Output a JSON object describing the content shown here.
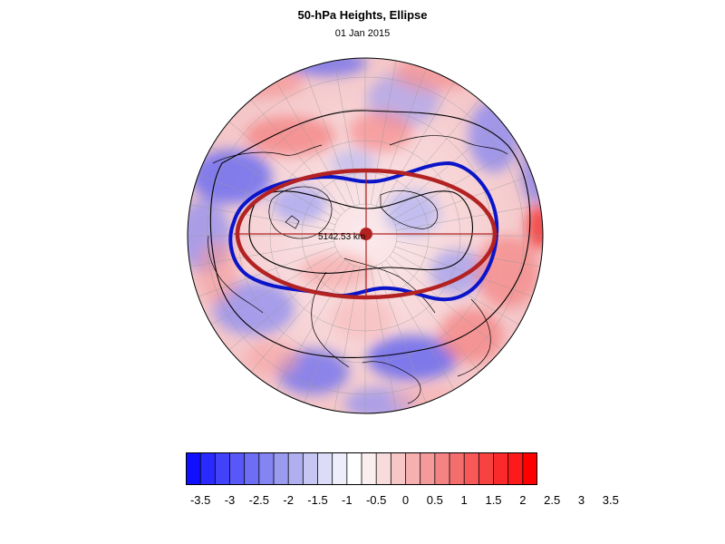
{
  "title": "50-hPa Heights, Ellipse",
  "date": "01 Jan 2015",
  "ellipse_annotation": "5142.53 km",
  "colors": {
    "ellipse": "#b22222",
    "observed_contour": "#0a14c8",
    "coastline": "#000000"
  },
  "colorbar": {
    "palette": [
      "#1010ff",
      "#2a2aff",
      "#4242fb",
      "#5858f8",
      "#6e6ef4",
      "#8484f2",
      "#9a9aef",
      "#b0b0f0",
      "#c6c6f2",
      "#dcdcf6",
      "#eeeefa",
      "#ffffff",
      "#faeeee",
      "#f8dcdc",
      "#f7c6c6",
      "#f6b0b0",
      "#f59a9a",
      "#f48484",
      "#f56e6e",
      "#f75858",
      "#f84242",
      "#fa2a2a",
      "#fc1a1a",
      "#ff0000"
    ],
    "tick_labels": [
      "-3.5",
      "-3",
      "-2.5",
      "-2",
      "-1.5",
      "-1",
      "-0.5",
      "0",
      "0.5",
      "1",
      "1.5",
      "2",
      "2.5",
      "3",
      "3.5"
    ]
  }
}
